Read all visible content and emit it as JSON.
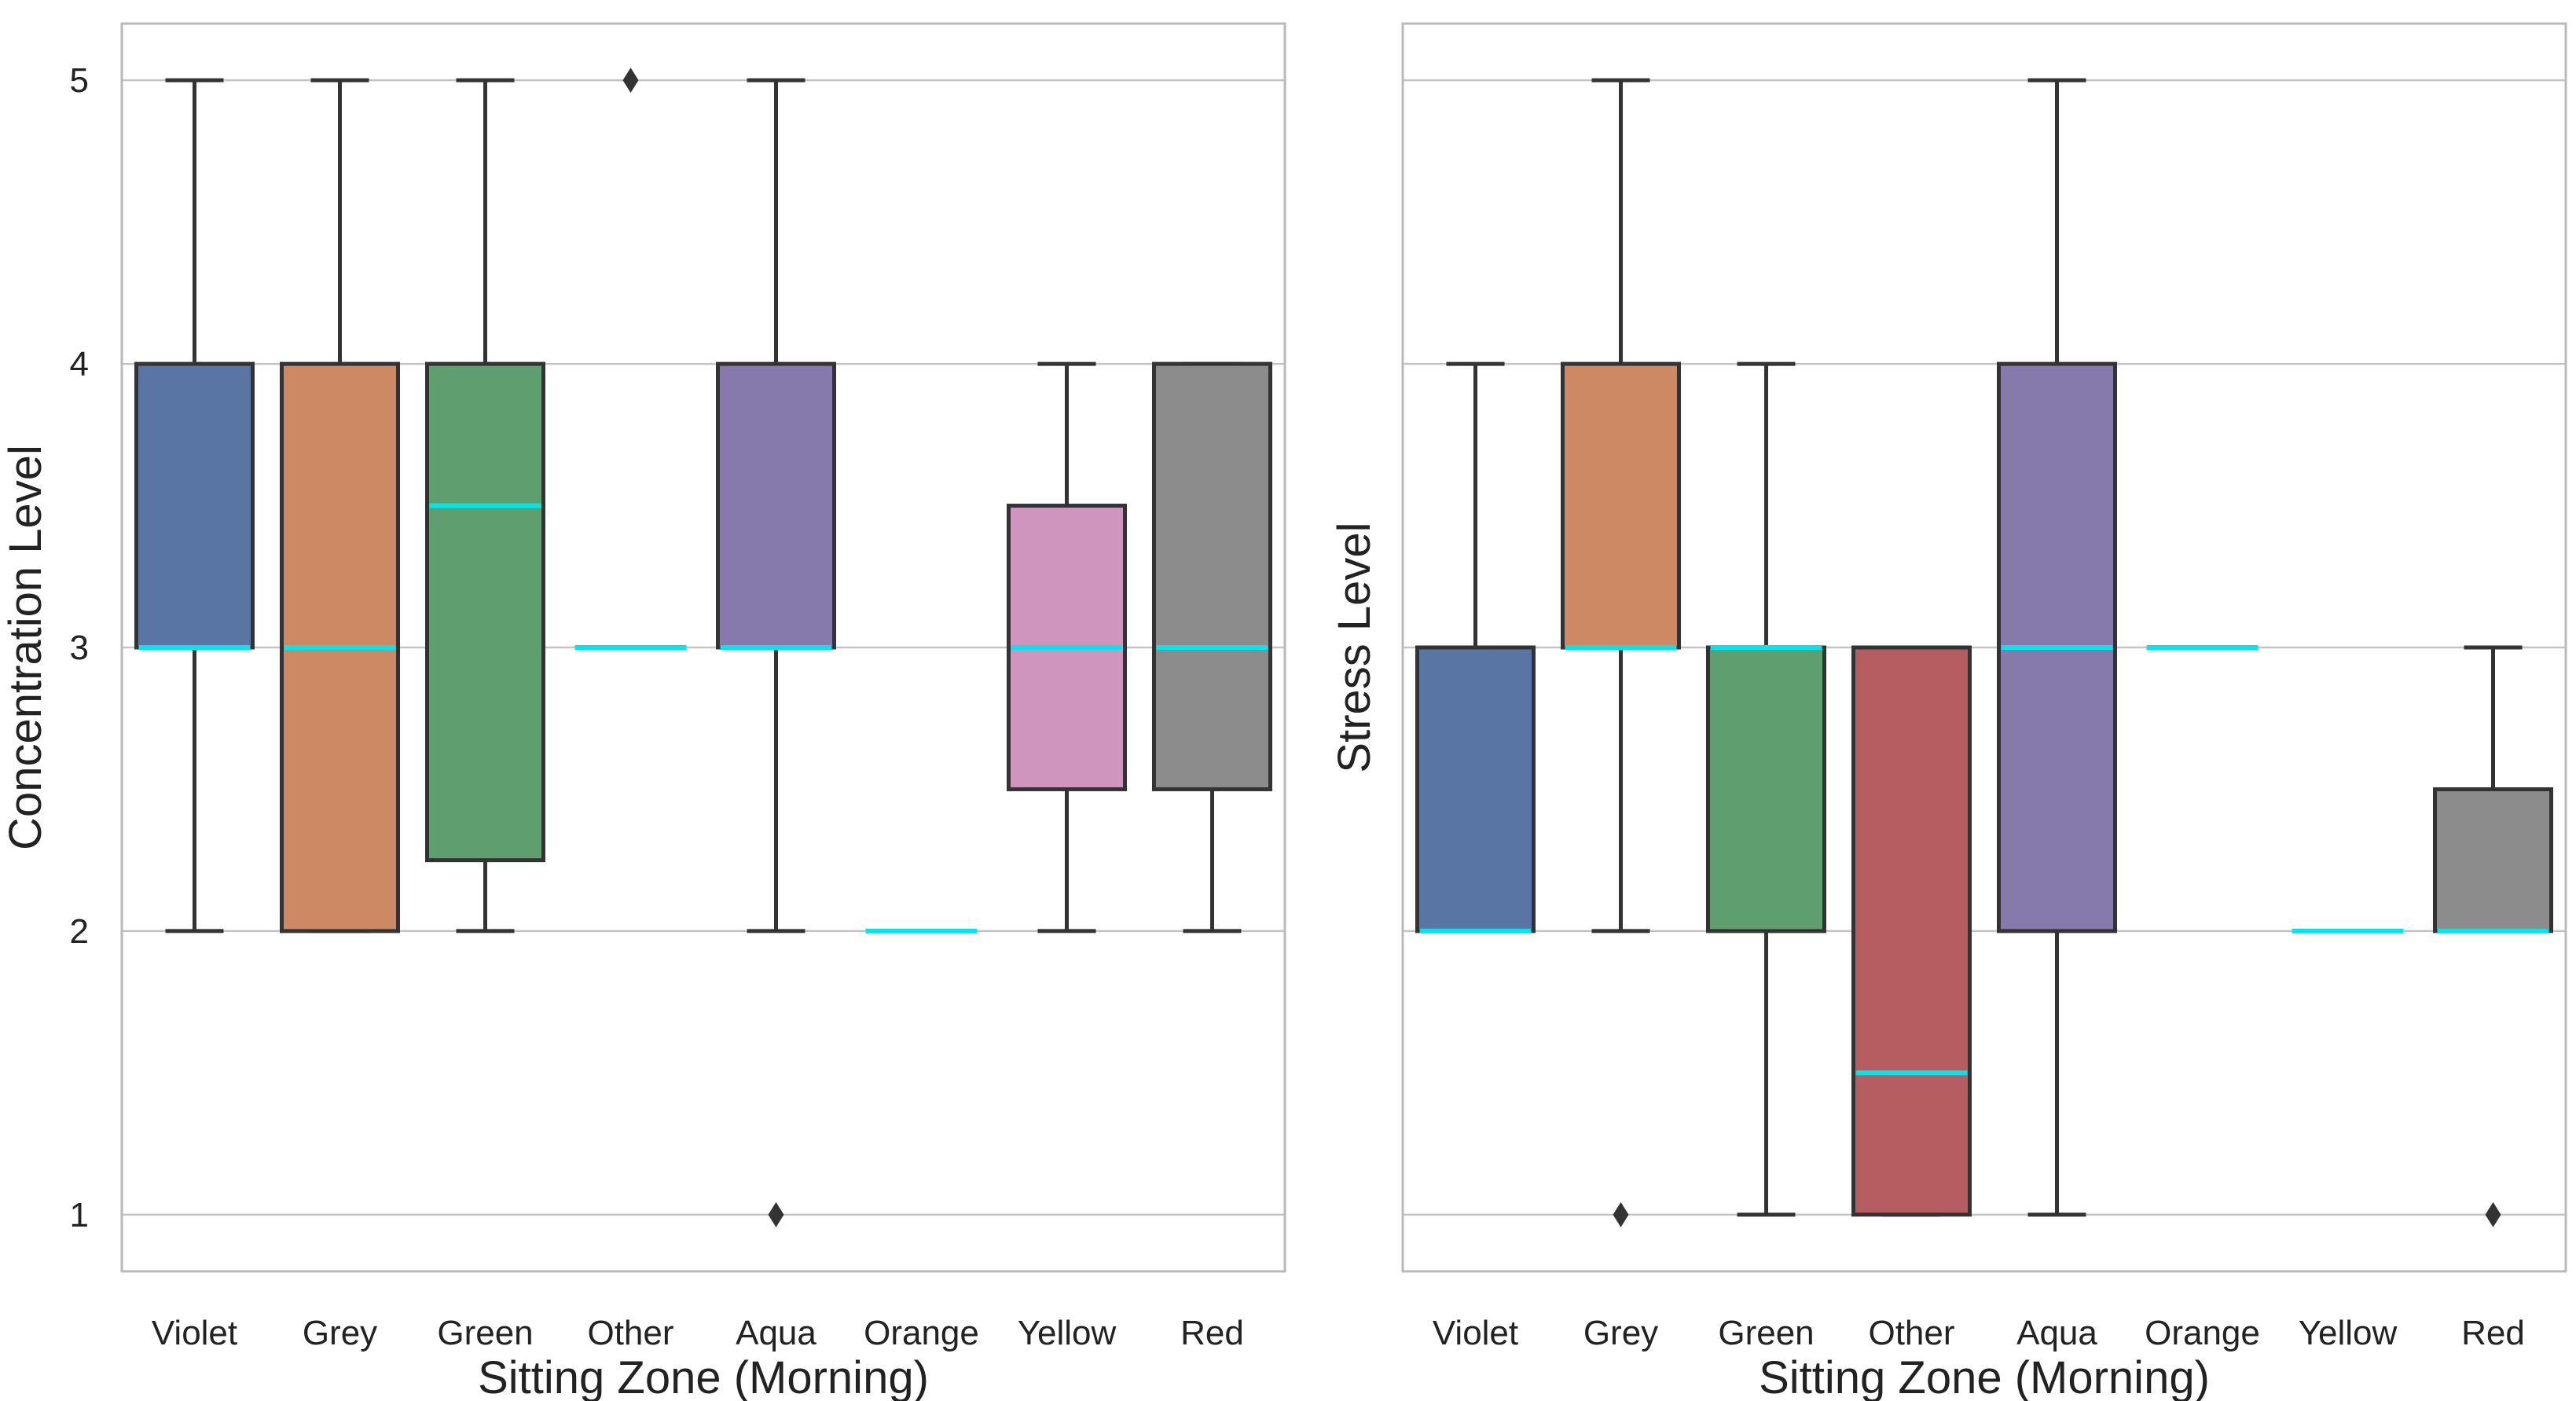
{
  "chart_data": [
    {
      "type": "box",
      "xlabel": "Sitting Zone (Morning)",
      "ylabel": "Concentration Level",
      "ylim": [
        0.8,
        5.2
      ],
      "yticks": [
        1,
        2,
        3,
        4,
        5
      ],
      "grid": "horizontal",
      "median_color": "#00e5ee",
      "categories": [
        "Violet",
        "Grey",
        "Green",
        "Other",
        "Aqua",
        "Orange",
        "Yellow",
        "Red"
      ],
      "boxes": [
        {
          "category": "Violet",
          "whisker_low": 2,
          "q1": 3,
          "median": 3,
          "q3": 4,
          "whisker_high": 5,
          "outliers": [],
          "color": "#5975a4"
        },
        {
          "category": "Grey",
          "whisker_low": 2,
          "q1": 2,
          "median": 3,
          "q3": 4,
          "whisker_high": 5,
          "outliers": [],
          "color": "#cc8963"
        },
        {
          "category": "Green",
          "whisker_low": 2,
          "q1": 2.25,
          "median": 3.5,
          "q3": 4,
          "whisker_high": 5,
          "outliers": [],
          "color": "#5f9e6e"
        },
        {
          "category": "Other",
          "whisker_low": 3,
          "q1": 3,
          "median": 3,
          "q3": 3,
          "whisker_high": 3,
          "outliers": [
            5
          ],
          "color": "#b55d60"
        },
        {
          "category": "Aqua",
          "whisker_low": 2,
          "q1": 3,
          "median": 3,
          "q3": 4,
          "whisker_high": 5,
          "outliers": [
            1
          ],
          "color": "#857aab"
        },
        {
          "category": "Orange",
          "whisker_low": 2,
          "q1": 2,
          "median": 2,
          "q3": 2,
          "whisker_high": 2,
          "outliers": [],
          "color": "#8d7866"
        },
        {
          "category": "Yellow",
          "whisker_low": 2,
          "q1": 2.5,
          "median": 3,
          "q3": 3.5,
          "whisker_high": 4,
          "outliers": [],
          "color": "#d095bf"
        },
        {
          "category": "Red",
          "whisker_low": 2,
          "q1": 2.5,
          "median": 3,
          "q3": 4,
          "whisker_high": 4,
          "outliers": [],
          "color": "#8c8c8c"
        }
      ]
    },
    {
      "type": "box",
      "xlabel": "Sitting Zone (Morning)",
      "ylabel": "Stress Level",
      "ylim": [
        0.8,
        5.2
      ],
      "yticks": [
        1,
        2,
        3,
        4,
        5
      ],
      "grid": "horizontal",
      "median_color": "#00e5ee",
      "categories": [
        "Violet",
        "Grey",
        "Green",
        "Other",
        "Aqua",
        "Orange",
        "Yellow",
        "Red"
      ],
      "boxes": [
        {
          "category": "Violet",
          "whisker_low": 2,
          "q1": 2,
          "median": 2,
          "q3": 3,
          "whisker_high": 4,
          "outliers": [],
          "color": "#5975a4"
        },
        {
          "category": "Grey",
          "whisker_low": 2,
          "q1": 3,
          "median": 3,
          "q3": 4,
          "whisker_high": 5,
          "outliers": [
            1
          ],
          "color": "#cc8963"
        },
        {
          "category": "Green",
          "whisker_low": 1,
          "q1": 2,
          "median": 3,
          "q3": 3,
          "whisker_high": 4,
          "outliers": [],
          "color": "#5f9e6e"
        },
        {
          "category": "Other",
          "whisker_low": 1,
          "q1": 1,
          "median": 1.5,
          "q3": 3,
          "whisker_high": 3,
          "outliers": [],
          "color": "#b55d60"
        },
        {
          "category": "Aqua",
          "whisker_low": 1,
          "q1": 2,
          "median": 3,
          "q3": 4,
          "whisker_high": 5,
          "outliers": [],
          "color": "#857aab"
        },
        {
          "category": "Orange",
          "whisker_low": 3,
          "q1": 3,
          "median": 3,
          "q3": 3,
          "whisker_high": 3,
          "outliers": [],
          "color": "#8d7866"
        },
        {
          "category": "Yellow",
          "whisker_low": 2,
          "q1": 2,
          "median": 2,
          "q3": 2,
          "whisker_high": 2,
          "outliers": [],
          "color": "#d095bf"
        },
        {
          "category": "Red",
          "whisker_low": 2,
          "q1": 2,
          "median": 2,
          "q3": 2.5,
          "whisker_high": 3,
          "outliers": [
            1
          ],
          "color": "#8c8c8c"
        }
      ]
    }
  ]
}
